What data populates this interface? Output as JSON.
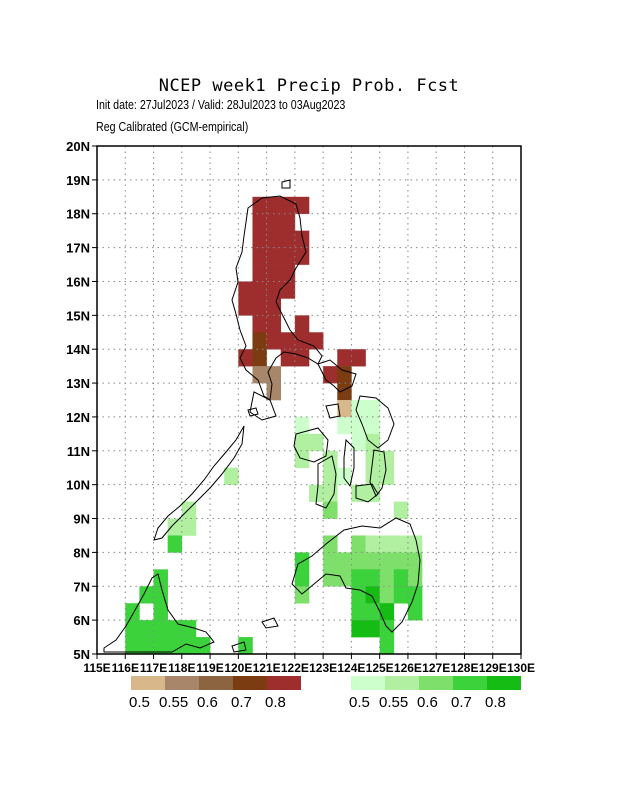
{
  "title": "NCEP week1 Precip Prob. Fcst",
  "subtitle_line1": "Init date: 27Jul2023 / Valid: 28Jul2023 to 03Aug2023",
  "subtitle_line2": "Reg Calibrated (GCM-empirical)",
  "lat_labels": [
    "5N",
    "6N",
    "7N",
    "8N",
    "9N",
    "10N",
    "11N",
    "12N",
    "13N",
    "14N",
    "15N",
    "16N",
    "17N",
    "18N",
    "19N",
    "20N"
  ],
  "lon_labels": [
    "115E",
    "116E",
    "117E",
    "118E",
    "119E",
    "120E",
    "121E",
    "122E",
    "123E",
    "124E",
    "125E",
    "126E",
    "127E",
    "128E",
    "129E",
    "130E"
  ],
  "legend": {
    "below": {
      "labels": [
        "0.5",
        "0.55",
        "0.6",
        "0.7",
        "0.8"
      ],
      "colors": [
        "#d8b88a",
        "#a8866a",
        "#8c6440",
        "#7a3c10",
        "#9e2e2e"
      ]
    },
    "above": {
      "labels": [
        "0.5",
        "0.55",
        "0.6",
        "0.7",
        "0.8"
      ],
      "colors": [
        "#ccffcc",
        "#b0f0a0",
        "#7ee06a",
        "#3cd23c",
        "#14bc14"
      ]
    }
  },
  "grid": true,
  "category_colors": {
    "B": "#9e2e2e",
    "b": "#7a3c10",
    "m": "#a8866a",
    "t": "#d8b88a",
    "G": "#3cd23c",
    "D": "#14bc14",
    "g": "#7ee06a",
    "l": "#b0f0a0",
    "p": "#ccffcc"
  },
  "cells": [
    [
      120.75,
      18.25,
      "B"
    ],
    [
      121.25,
      18.25,
      "B"
    ],
    [
      121.75,
      18.25,
      "B"
    ],
    [
      122.25,
      18.25,
      "B"
    ],
    [
      120.75,
      17.75,
      "B"
    ],
    [
      121.25,
      17.75,
      "B"
    ],
    [
      121.75,
      17.75,
      "B"
    ],
    [
      120.75,
      17.25,
      "B"
    ],
    [
      121.25,
      17.25,
      "B"
    ],
    [
      121.75,
      17.25,
      "B"
    ],
    [
      122.25,
      17.25,
      "B"
    ],
    [
      120.75,
      16.75,
      "B"
    ],
    [
      121.25,
      16.75,
      "B"
    ],
    [
      121.75,
      16.75,
      "B"
    ],
    [
      122.25,
      16.75,
      "B"
    ],
    [
      120.75,
      16.25,
      "B"
    ],
    [
      121.25,
      16.25,
      "B"
    ],
    [
      121.75,
      16.25,
      "B"
    ],
    [
      120.25,
      15.75,
      "B"
    ],
    [
      120.75,
      15.75,
      "B"
    ],
    [
      121.25,
      15.75,
      "B"
    ],
    [
      121.75,
      15.75,
      "B"
    ],
    [
      120.25,
      15.25,
      "B"
    ],
    [
      120.75,
      15.25,
      "B"
    ],
    [
      121.25,
      15.25,
      "B"
    ],
    [
      120.75,
      14.75,
      "B"
    ],
    [
      121.25,
      14.75,
      "B"
    ],
    [
      122.25,
      14.75,
      "B"
    ],
    [
      120.75,
      14.25,
      "b"
    ],
    [
      121.25,
      14.25,
      "B"
    ],
    [
      121.75,
      14.25,
      "B"
    ],
    [
      122.25,
      14.25,
      "B"
    ],
    [
      122.75,
      14.25,
      "B"
    ],
    [
      120.25,
      13.75,
      "B"
    ],
    [
      120.75,
      13.75,
      "b"
    ],
    [
      121.75,
      13.75,
      "B"
    ],
    [
      122.25,
      13.75,
      "B"
    ],
    [
      123.75,
      13.75,
      "B"
    ],
    [
      124.25,
      13.75,
      "B"
    ],
    [
      120.75,
      13.25,
      "m"
    ],
    [
      121.25,
      13.25,
      "m"
    ],
    [
      123.25,
      13.25,
      "B"
    ],
    [
      123.75,
      13.25,
      "b"
    ],
    [
      121.25,
      12.75,
      "m"
    ],
    [
      123.75,
      12.75,
      "b"
    ],
    [
      123.75,
      12.25,
      "t"
    ],
    [
      124.25,
      12.25,
      "p"
    ],
    [
      124.75,
      12.25,
      "p"
    ],
    [
      122.25,
      11.75,
      "p"
    ],
    [
      123.75,
      11.75,
      "p"
    ],
    [
      124.25,
      11.75,
      "p"
    ],
    [
      124.75,
      11.75,
      "p"
    ],
    [
      122.25,
      11.25,
      "l"
    ],
    [
      122.75,
      11.25,
      "l"
    ],
    [
      124.25,
      11.25,
      "p"
    ],
    [
      124.75,
      11.25,
      "l"
    ],
    [
      122.25,
      10.75,
      "l"
    ],
    [
      123.25,
      10.75,
      "l"
    ],
    [
      124.75,
      10.75,
      "l"
    ],
    [
      125.25,
      10.75,
      "l"
    ],
    [
      123.25,
      10.25,
      "l"
    ],
    [
      123.75,
      10.25,
      "p"
    ],
    [
      124.75,
      10.25,
      "l"
    ],
    [
      125.25,
      10.25,
      "l"
    ],
    [
      119.75,
      10.25,
      "l"
    ],
    [
      122.75,
      9.75,
      "l"
    ],
    [
      123.25,
      9.75,
      "l"
    ],
    [
      124.25,
      9.75,
      "l"
    ],
    [
      124.75,
      9.75,
      "l"
    ],
    [
      123.25,
      9.25,
      "g"
    ],
    [
      125.75,
      9.25,
      "l"
    ],
    [
      118.25,
      9.25,
      "l"
    ],
    [
      117.75,
      8.75,
      "l"
    ],
    [
      118.25,
      8.75,
      "l"
    ],
    [
      117.75,
      8.25,
      "G"
    ],
    [
      123.25,
      8.25,
      "g"
    ],
    [
      124.25,
      8.25,
      "g"
    ],
    [
      124.75,
      8.25,
      "l"
    ],
    [
      125.25,
      8.25,
      "l"
    ],
    [
      125.75,
      8.25,
      "l"
    ],
    [
      126.25,
      8.25,
      "l"
    ],
    [
      123.25,
      7.75,
      "g"
    ],
    [
      123.75,
      7.75,
      "g"
    ],
    [
      124.25,
      7.75,
      "g"
    ],
    [
      124.75,
      7.75,
      "g"
    ],
    [
      125.25,
      7.75,
      "g"
    ],
    [
      125.75,
      7.75,
      "g"
    ],
    [
      126.25,
      7.75,
      "g"
    ],
    [
      122.25,
      7.75,
      "G"
    ],
    [
      122.25,
      7.25,
      "G"
    ],
    [
      122.25,
      6.75,
      "g"
    ],
    [
      123.25,
      7.25,
      "g"
    ],
    [
      123.75,
      7.25,
      "g"
    ],
    [
      124.25,
      7.25,
      "G"
    ],
    [
      124.75,
      7.25,
      "G"
    ],
    [
      125.25,
      7.25,
      "g"
    ],
    [
      125.75,
      7.25,
      "G"
    ],
    [
      126.25,
      7.25,
      "g"
    ],
    [
      124.25,
      6.75,
      "G"
    ],
    [
      124.75,
      6.75,
      "D"
    ],
    [
      125.25,
      6.75,
      "g"
    ],
    [
      125.75,
      6.75,
      "G"
    ],
    [
      126.25,
      6.75,
      "G"
    ],
    [
      124.25,
      6.25,
      "G"
    ],
    [
      124.75,
      6.25,
      "G"
    ],
    [
      125.25,
      6.25,
      "D"
    ],
    [
      126.25,
      6.25,
      "G"
    ],
    [
      124.25,
      5.75,
      "D"
    ],
    [
      124.75,
      5.75,
      "D"
    ],
    [
      125.25,
      5.75,
      "G"
    ],
    [
      125.25,
      5.25,
      "G"
    ],
    [
      117.25,
      7.25,
      "G"
    ],
    [
      117.25,
      6.75,
      "G"
    ],
    [
      116.75,
      6.75,
      "G"
    ],
    [
      117.25,
      6.25,
      "G"
    ],
    [
      116.25,
      6.25,
      "G"
    ],
    [
      116.25,
      5.75,
      "G"
    ],
    [
      116.75,
      5.75,
      "G"
    ],
    [
      117.25,
      5.75,
      "G"
    ],
    [
      117.75,
      5.75,
      "G"
    ],
    [
      118.25,
      5.75,
      "G"
    ],
    [
      116.25,
      5.25,
      "G"
    ],
    [
      116.75,
      5.25,
      "G"
    ],
    [
      117.25,
      5.25,
      "G"
    ],
    [
      117.75,
      5.25,
      "G"
    ],
    [
      118.25,
      5.25,
      "G"
    ],
    [
      118.75,
      5.25,
      "G"
    ],
    [
      120.25,
      5.25,
      "G"
    ]
  ]
}
